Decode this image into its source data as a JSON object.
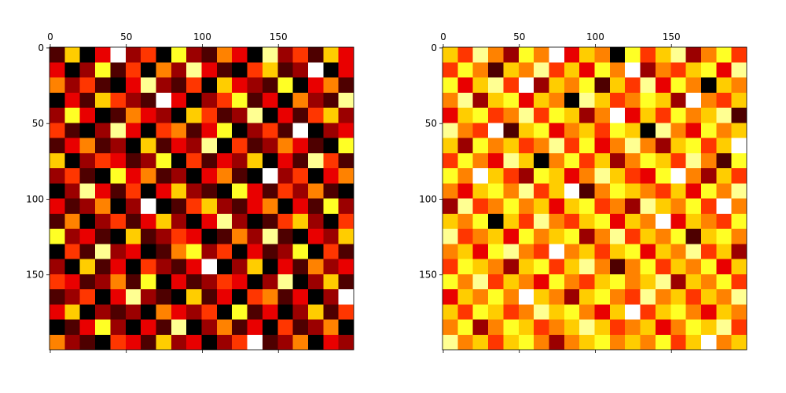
{
  "chart_data": [
    {
      "type": "heatmap",
      "colormap": "hot",
      "xtick_position": "top",
      "xlim": [
        -0.5,
        199.5
      ],
      "ylim": [
        199.5,
        -0.5
      ],
      "xticks": [
        0,
        50,
        100,
        150
      ],
      "yticks": [
        0,
        50,
        100,
        150
      ],
      "values": [
        [
          1,
          6,
          0,
          3,
          9,
          2,
          4,
          0,
          7,
          2,
          1,
          5,
          3,
          0,
          8,
          2,
          4,
          1,
          6,
          3
        ],
        [
          3,
          0,
          2,
          7,
          1,
          4,
          0,
          5,
          2,
          8,
          3,
          1,
          0,
          4,
          6,
          1,
          2,
          9,
          0,
          3
        ],
        [
          5,
          2,
          4,
          1,
          0,
          3,
          8,
          2,
          1,
          4,
          0,
          6,
          3,
          2,
          1,
          7,
          0,
          3,
          5,
          1
        ],
        [
          0,
          3,
          1,
          6,
          4,
          2,
          1,
          9,
          3,
          0,
          2,
          4,
          7,
          1,
          3,
          0,
          5,
          2,
          1,
          8
        ],
        [
          2,
          7,
          3,
          0,
          1,
          5,
          3,
          2,
          0,
          6,
          4,
          1,
          2,
          8,
          0,
          3,
          1,
          4,
          6,
          2
        ],
        [
          4,
          1,
          0,
          2,
          8,
          3,
          0,
          4,
          5,
          1,
          3,
          7,
          0,
          2,
          4,
          1,
          9,
          0,
          2,
          3
        ],
        [
          1,
          3,
          5,
          1,
          2,
          0,
          6,
          1,
          3,
          2,
          8,
          0,
          4,
          1,
          2,
          5,
          3,
          1,
          0,
          7
        ],
        [
          6,
          0,
          2,
          4,
          3,
          1,
          2,
          7,
          0,
          4,
          1,
          3,
          2,
          6,
          0,
          3,
          1,
          8,
          4,
          1
        ],
        [
          2,
          4,
          1,
          0,
          7,
          3,
          5,
          1,
          2,
          0,
          3,
          5,
          1,
          0,
          9,
          2,
          4,
          0,
          3,
          5
        ],
        [
          0,
          2,
          8,
          3,
          1,
          4,
          0,
          3,
          6,
          2,
          1,
          0,
          7,
          3,
          1,
          4,
          2,
          5,
          1,
          0
        ],
        [
          3,
          1,
          2,
          5,
          0,
          2,
          9,
          0,
          1,
          4,
          6,
          2,
          1,
          3,
          5,
          0,
          3,
          1,
          7,
          2
        ],
        [
          1,
          5,
          0,
          2,
          4,
          1,
          3,
          6,
          2,
          0,
          3,
          8,
          2,
          0,
          1,
          4,
          6,
          2,
          0,
          4
        ],
        [
          7,
          2,
          3,
          1,
          0,
          6,
          1,
          2,
          4,
          3,
          0,
          1,
          5,
          2,
          8,
          1,
          0,
          3,
          2,
          6
        ],
        [
          0,
          4,
          1,
          8,
          2,
          3,
          0,
          1,
          5,
          7,
          2,
          4,
          0,
          3,
          1,
          2,
          7,
          0,
          4,
          1
        ],
        [
          2,
          0,
          6,
          1,
          3,
          0,
          4,
          2,
          1,
          3,
          9,
          0,
          2,
          6,
          0,
          3,
          1,
          5,
          2,
          3
        ],
        [
          4,
          3,
          1,
          2,
          5,
          1,
          7,
          0,
          3,
          1,
          2,
          4,
          3,
          0,
          2,
          8,
          0,
          2,
          6,
          1
        ],
        [
          1,
          2,
          4,
          0,
          3,
          8,
          2,
          1,
          0,
          6,
          1,
          3,
          0,
          4,
          5,
          1,
          3,
          0,
          2,
          9
        ],
        [
          3,
          6,
          0,
          2,
          1,
          2,
          0,
          5,
          3,
          2,
          4,
          0,
          7,
          1,
          3,
          0,
          2,
          6,
          1,
          4
        ],
        [
          0,
          1,
          3,
          7,
          2,
          0,
          3,
          1,
          8,
          0,
          2,
          5,
          1,
          3,
          0,
          4,
          1,
          2,
          5,
          0
        ],
        [
          5,
          2,
          1,
          0,
          4,
          3,
          1,
          6,
          2,
          3,
          0,
          2,
          4,
          9,
          1,
          2,
          5,
          0,
          3,
          2
        ]
      ]
    },
    {
      "type": "heatmap",
      "colormap": "hot",
      "xtick_position": "top",
      "xlim": [
        -0.5,
        199.5
      ],
      "ylim": [
        199.5,
        -0.5
      ],
      "xticks": [
        0,
        50,
        100,
        150
      ],
      "yticks": [
        0,
        50,
        100,
        150
      ],
      "values": [
        [
          6,
          4,
          8,
          5,
          2,
          7,
          5,
          9,
          3,
          6,
          5,
          0,
          7,
          4,
          6,
          8,
          2,
          5,
          7,
          4
        ],
        [
          4,
          7,
          5,
          1,
          6,
          5,
          8,
          4,
          6,
          3,
          7,
          5,
          9,
          2,
          5,
          4,
          6,
          7,
          3,
          8
        ],
        [
          7,
          3,
          6,
          8,
          4,
          9,
          2,
          6,
          5,
          7,
          1,
          6,
          4,
          8,
          3,
          7,
          5,
          0,
          6,
          5
        ],
        [
          5,
          8,
          2,
          6,
          7,
          3,
          6,
          5,
          0,
          8,
          6,
          4,
          5,
          7,
          6,
          2,
          9,
          5,
          4,
          6
        ],
        [
          3,
          6,
          7,
          4,
          5,
          8,
          4,
          7,
          6,
          2,
          5,
          9,
          3,
          6,
          4,
          7,
          5,
          6,
          8,
          1
        ],
        [
          8,
          5,
          4,
          9,
          1,
          6,
          7,
          3,
          5,
          6,
          4,
          7,
          6,
          0,
          8,
          5,
          3,
          7,
          5,
          6
        ],
        [
          6,
          2,
          7,
          5,
          6,
          4,
          5,
          8,
          4,
          7,
          3,
          5,
          8,
          5,
          2,
          6,
          7,
          4,
          6,
          9
        ],
        [
          4,
          7,
          5,
          3,
          8,
          6,
          0,
          5,
          7,
          4,
          6,
          2,
          5,
          7,
          6,
          4,
          8,
          5,
          1,
          7
        ],
        [
          7,
          5,
          9,
          6,
          4,
          2,
          7,
          6,
          3,
          5,
          8,
          6,
          4,
          3,
          7,
          9,
          5,
          2,
          6,
          4
        ],
        [
          5,
          3,
          6,
          7,
          5,
          8,
          4,
          6,
          9,
          1,
          5,
          7,
          6,
          5,
          4,
          6,
          3,
          7,
          5,
          8
        ],
        [
          2,
          8,
          4,
          5,
          7,
          5,
          6,
          3,
          6,
          7,
          4,
          5,
          2,
          8,
          6,
          5,
          7,
          4,
          9,
          5
        ],
        [
          6,
          5,
          7,
          0,
          6,
          4,
          8,
          5,
          4,
          6,
          7,
          3,
          6,
          5,
          9,
          3,
          6,
          5,
          4,
          7
        ],
        [
          8,
          4,
          5,
          6,
          3,
          7,
          5,
          6,
          7,
          2,
          5,
          8,
          4,
          6,
          5,
          7,
          1,
          6,
          7,
          5
        ],
        [
          5,
          6,
          3,
          7,
          8,
          5,
          4,
          9,
          5,
          6,
          4,
          6,
          7,
          3,
          6,
          5,
          8,
          4,
          6,
          2
        ],
        [
          4,
          7,
          6,
          5,
          2,
          6,
          7,
          4,
          6,
          8,
          5,
          1,
          5,
          7,
          4,
          6,
          5,
          7,
          3,
          6
        ],
        [
          7,
          5,
          8,
          4,
          6,
          5,
          3,
          7,
          5,
          4,
          6,
          7,
          5,
          6,
          8,
          2,
          6,
          5,
          7,
          4
        ],
        [
          3,
          6,
          5,
          7,
          5,
          9,
          6,
          5,
          2,
          6,
          7,
          5,
          4,
          8,
          5,
          6,
          4,
          6,
          5,
          8
        ],
        [
          6,
          4,
          7,
          6,
          4,
          5,
          8,
          6,
          7,
          5,
          3,
          6,
          9,
          4,
          6,
          7,
          5,
          3,
          6,
          5
        ],
        [
          5,
          7,
          2,
          5,
          7,
          6,
          4,
          5,
          6,
          8,
          6,
          4,
          5,
          6,
          3,
          5,
          7,
          6,
          8,
          4
        ],
        [
          8,
          5,
          6,
          4,
          6,
          7,
          5,
          2,
          5,
          6,
          7,
          5,
          6,
          5,
          7,
          4,
          6,
          9,
          5,
          6
        ]
      ]
    }
  ]
}
